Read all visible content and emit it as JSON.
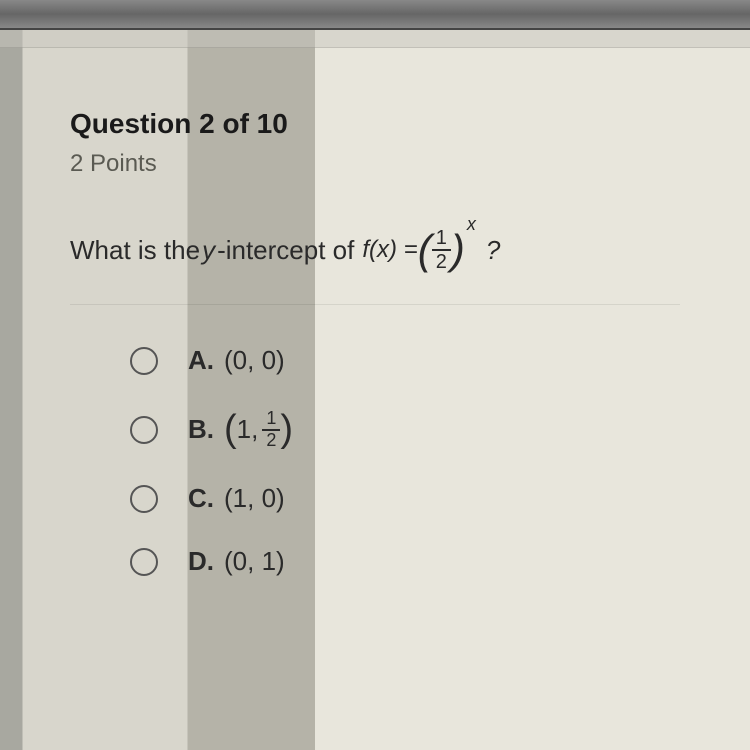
{
  "quiz": {
    "question_number_label": "Question 2 of 10",
    "points_label": "2 Points",
    "prompt_prefix": "What is the ",
    "prompt_term": "y",
    "prompt_suffix": "-intercept of",
    "formula": {
      "lhs": "f(x) =",
      "frac_num": "1",
      "frac_den": "2",
      "exponent": "x",
      "qmark": "?"
    },
    "options": [
      {
        "letter": "A.",
        "display": "(0, 0)"
      },
      {
        "letter": "B.",
        "display_prefix": "1,",
        "frac_num": "1",
        "frac_den": "2",
        "is_fraction": true
      },
      {
        "letter": "C.",
        "display": "(1, 0)"
      },
      {
        "letter": "D.",
        "display": "(0, 1)"
      }
    ]
  },
  "colors": {
    "text": "#2a2a2a",
    "muted": "#5a5a52",
    "radio_border": "#555555"
  },
  "fonts": {
    "header_size": 28,
    "body_size": 26,
    "points_size": 24
  }
}
